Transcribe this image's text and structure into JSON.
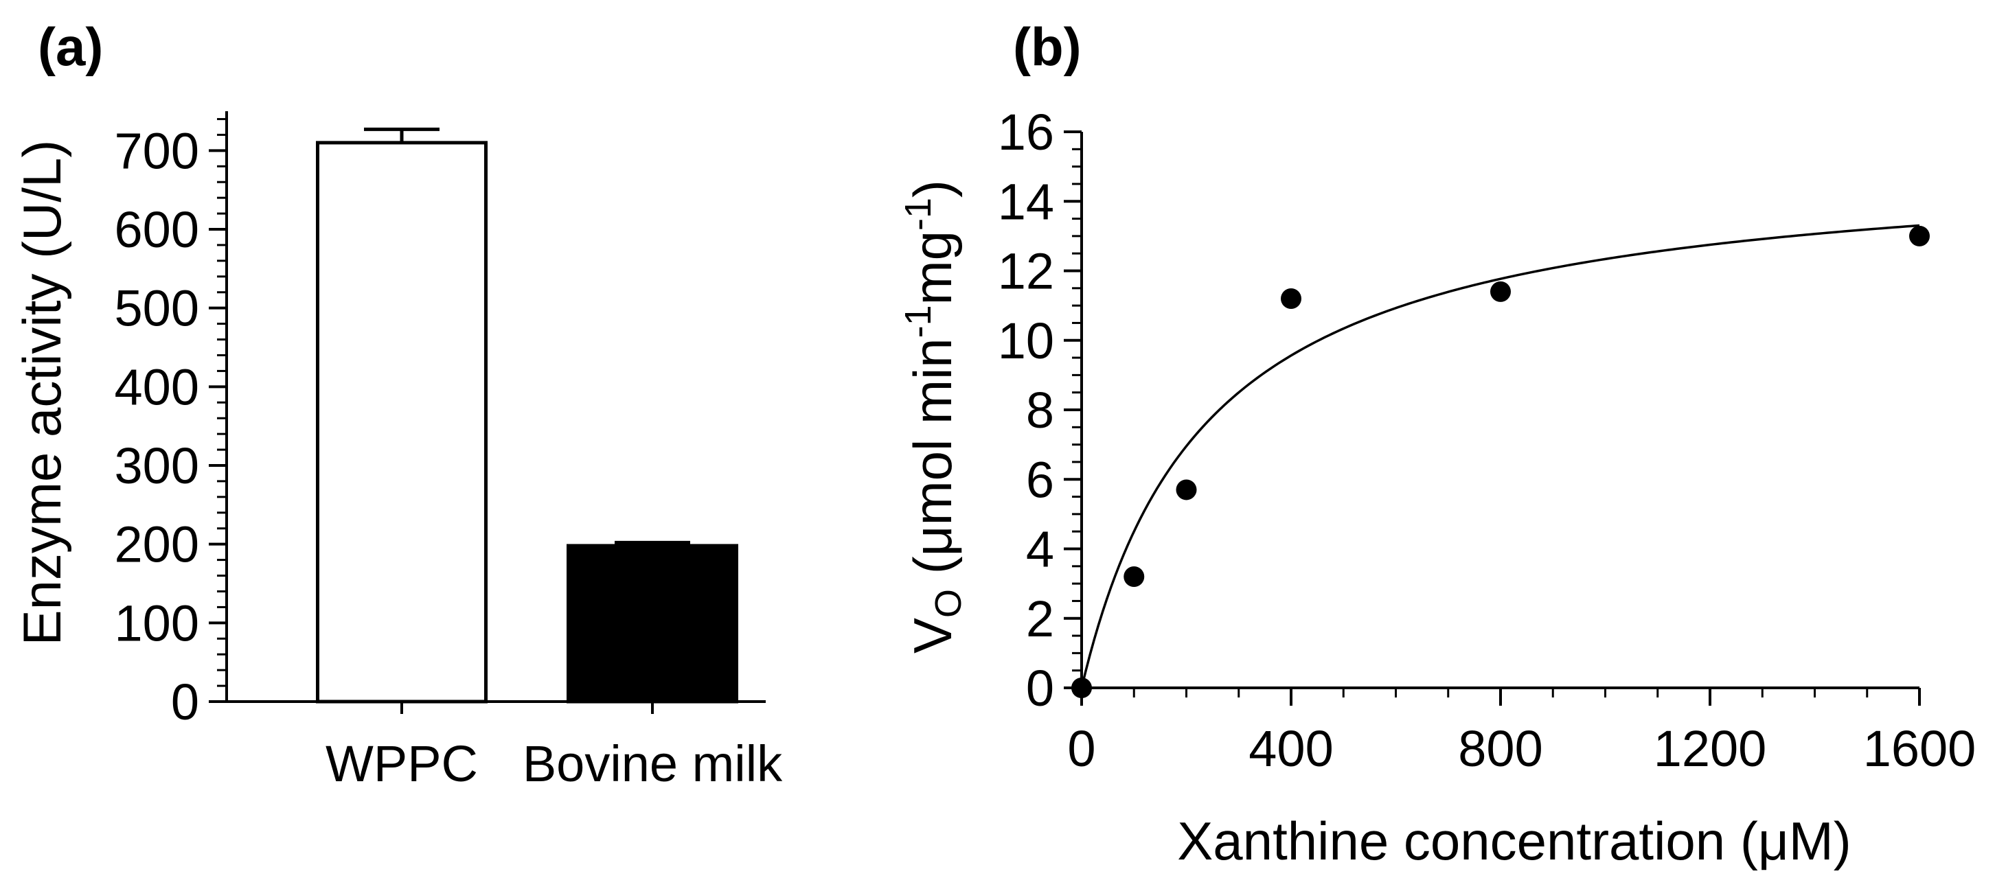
{
  "colors": {
    "axis": "#000000",
    "bar_wppc": "#ffffff",
    "bar_milk": "#000000",
    "marker": "#000000"
  },
  "chart_data": [
    {
      "panel_label": "(a)",
      "type": "bar",
      "title": "",
      "xlabel": "",
      "ylabel": "Enzyme activity (U/L)",
      "ylim": [
        0,
        750
      ],
      "yticks": [
        0,
        100,
        200,
        300,
        400,
        500,
        600,
        700
      ],
      "ytick_labels": [
        "0",
        "100",
        "200",
        "300",
        "400",
        "500",
        "600",
        "700"
      ],
      "y_minor_ticks_per_major": 4,
      "categories": [
        "WPPC",
        "Bovine milk"
      ],
      "values": [
        710,
        198
      ],
      "errors": [
        17,
        4
      ],
      "bar_fills": [
        "#ffffff",
        "#000000"
      ],
      "grid": false,
      "legend": "none"
    },
    {
      "panel_label": "(b)",
      "type": "scatter",
      "title": "",
      "xlabel": "Xanthine concentration (μM)",
      "ylabel": {
        "prefix": "V",
        "sub": "O",
        "main": " (μmol min",
        "sup1": "-1",
        "mid": "mg",
        "sup2": "-1",
        "suffix": ")"
      },
      "xlim": [
        0,
        1600
      ],
      "ylim": [
        0,
        16
      ],
      "xticks": [
        0,
        400,
        800,
        1200,
        1600
      ],
      "xtick_labels": [
        "0",
        "400",
        "800",
        "1200",
        "1600"
      ],
      "yticks": [
        0,
        2,
        4,
        6,
        8,
        10,
        12,
        14,
        16
      ],
      "ytick_labels": [
        "0",
        "2",
        "4",
        "6",
        "8",
        "10",
        "12",
        "14",
        "16"
      ],
      "x_minor_ticks_per_major": 3,
      "y_minor_ticks_per_major": 3,
      "points": {
        "x": [
          0,
          100,
          200,
          400,
          800,
          1600
        ],
        "y": [
          0,
          3.2,
          5.7,
          11.2,
          11.4,
          13.0
        ]
      },
      "fit": {
        "model": "michaelis-menten",
        "vmax": 15.3,
        "km": 240
      },
      "grid": false,
      "legend": "none"
    }
  ]
}
